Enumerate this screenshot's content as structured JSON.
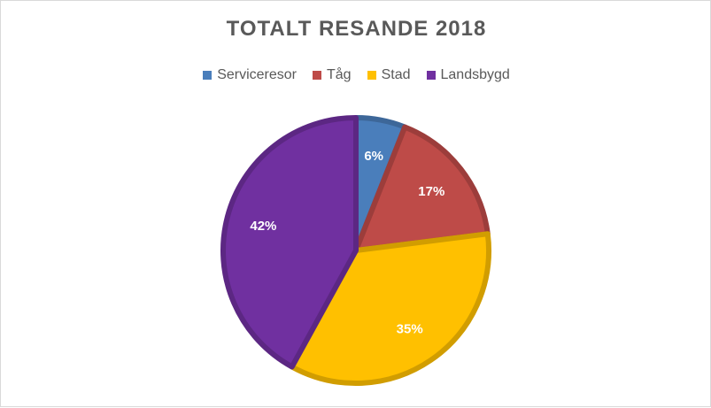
{
  "chart_data": {
    "type": "pie",
    "title": "TOTALT RESANDE 2018",
    "legend_position": "top",
    "slices": [
      {
        "name": "Serviceresor",
        "value": 6,
        "label": "6%",
        "color": "#4a7ebb"
      },
      {
        "name": "Tåg",
        "value": 17,
        "label": "17%",
        "color": "#be4b48"
      },
      {
        "name": "Stad",
        "value": 35,
        "label": "35%",
        "color": "#ffc000"
      },
      {
        "name": "Landsbygd",
        "value": 42,
        "label": "42%",
        "color": "#7030a0"
      }
    ]
  }
}
